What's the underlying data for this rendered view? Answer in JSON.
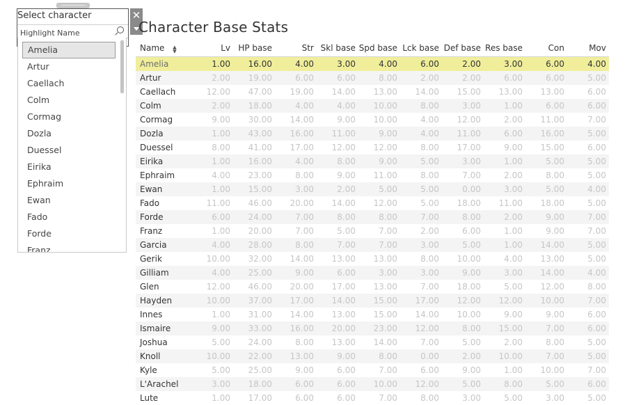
{
  "selector": {
    "title": "Select character",
    "search_placeholder": "Highlight Name",
    "close_glyph": "✕",
    "items": [
      "Amelia",
      "Artur",
      "Caellach",
      "Colm",
      "Cormag",
      "Dozla",
      "Duessel",
      "Eirika",
      "Ephraim",
      "Ewan",
      "Fado",
      "Forde",
      "Franz"
    ],
    "selected": "Amelia"
  },
  "table": {
    "title": "Character Base Stats",
    "columns": [
      "Name",
      "Lv",
      "HP base",
      "Str",
      "Skl base",
      "Spd base",
      "Lck base",
      "Def base",
      "Res base",
      "Con",
      "Mov"
    ],
    "highlight_row": "Amelia",
    "rows": [
      [
        "Amelia",
        "1.00",
        "16.00",
        "4.00",
        "3.00",
        "4.00",
        "6.00",
        "2.00",
        "3.00",
        "6.00",
        "4.00"
      ],
      [
        "Artur",
        "2.00",
        "19.00",
        "6.00",
        "6.00",
        "8.00",
        "2.00",
        "2.00",
        "6.00",
        "6.00",
        "5.00"
      ],
      [
        "Caellach",
        "12.00",
        "47.00",
        "19.00",
        "14.00",
        "13.00",
        "14.00",
        "15.00",
        "13.00",
        "13.00",
        "6.00"
      ],
      [
        "Colm",
        "2.00",
        "18.00",
        "4.00",
        "4.00",
        "10.00",
        "8.00",
        "3.00",
        "1.00",
        "6.00",
        "6.00"
      ],
      [
        "Cormag",
        "9.00",
        "30.00",
        "14.00",
        "9.00",
        "10.00",
        "4.00",
        "12.00",
        "2.00",
        "11.00",
        "7.00"
      ],
      [
        "Dozla",
        "1.00",
        "43.00",
        "16.00",
        "11.00",
        "9.00",
        "4.00",
        "11.00",
        "6.00",
        "16.00",
        "5.00"
      ],
      [
        "Duessel",
        "8.00",
        "41.00",
        "17.00",
        "12.00",
        "12.00",
        "8.00",
        "17.00",
        "9.00",
        "15.00",
        "6.00"
      ],
      [
        "Eirika",
        "1.00",
        "16.00",
        "4.00",
        "8.00",
        "9.00",
        "5.00",
        "3.00",
        "1.00",
        "5.00",
        "5.00"
      ],
      [
        "Ephraim",
        "4.00",
        "23.00",
        "8.00",
        "9.00",
        "11.00",
        "8.00",
        "7.00",
        "2.00",
        "8.00",
        "5.00"
      ],
      [
        "Ewan",
        "1.00",
        "15.00",
        "3.00",
        "2.00",
        "5.00",
        "5.00",
        "0.00",
        "3.00",
        "5.00",
        "4.00"
      ],
      [
        "Fado",
        "11.00",
        "46.00",
        "20.00",
        "14.00",
        "12.00",
        "5.00",
        "18.00",
        "11.00",
        "18.00",
        "5.00"
      ],
      [
        "Forde",
        "6.00",
        "24.00",
        "7.00",
        "8.00",
        "8.00",
        "7.00",
        "8.00",
        "2.00",
        "9.00",
        "7.00"
      ],
      [
        "Franz",
        "1.00",
        "20.00",
        "7.00",
        "5.00",
        "7.00",
        "2.00",
        "6.00",
        "1.00",
        "9.00",
        "7.00"
      ],
      [
        "Garcia",
        "4.00",
        "28.00",
        "8.00",
        "7.00",
        "7.00",
        "3.00",
        "5.00",
        "1.00",
        "14.00",
        "5.00"
      ],
      [
        "Gerik",
        "10.00",
        "32.00",
        "14.00",
        "13.00",
        "13.00",
        "8.00",
        "10.00",
        "4.00",
        "13.00",
        "5.00"
      ],
      [
        "Gilliam",
        "4.00",
        "25.00",
        "9.00",
        "6.00",
        "3.00",
        "3.00",
        "9.00",
        "3.00",
        "14.00",
        "4.00"
      ],
      [
        "Glen",
        "12.00",
        "46.00",
        "20.00",
        "17.00",
        "13.00",
        "7.00",
        "18.00",
        "5.00",
        "12.00",
        "8.00"
      ],
      [
        "Hayden",
        "10.00",
        "37.00",
        "17.00",
        "14.00",
        "15.00",
        "17.00",
        "12.00",
        "12.00",
        "10.00",
        "7.00"
      ],
      [
        "Innes",
        "1.00",
        "31.00",
        "14.00",
        "13.00",
        "15.00",
        "14.00",
        "10.00",
        "9.00",
        "9.00",
        "6.00"
      ],
      [
        "Ismaire",
        "9.00",
        "33.00",
        "16.00",
        "20.00",
        "23.00",
        "12.00",
        "8.00",
        "15.00",
        "7.00",
        "6.00"
      ],
      [
        "Joshua",
        "5.00",
        "24.00",
        "8.00",
        "13.00",
        "14.00",
        "7.00",
        "5.00",
        "2.00",
        "8.00",
        "5.00"
      ],
      [
        "Knoll",
        "10.00",
        "22.00",
        "13.00",
        "9.00",
        "8.00",
        "0.00",
        "2.00",
        "10.00",
        "7.00",
        "5.00"
      ],
      [
        "Kyle",
        "5.00",
        "25.00",
        "9.00",
        "6.00",
        "7.00",
        "6.00",
        "9.00",
        "1.00",
        "10.00",
        "7.00"
      ],
      [
        "L'Arachel",
        "3.00",
        "18.00",
        "6.00",
        "6.00",
        "10.00",
        "12.00",
        "5.00",
        "8.00",
        "5.00",
        "6.00"
      ],
      [
        "Lute",
        "1.00",
        "17.00",
        "6.00",
        "6.00",
        "7.00",
        "8.00",
        "3.00",
        "5.00",
        "3.00",
        "5.00"
      ]
    ]
  },
  "colors": {
    "highlight": "#f0ee9a",
    "muted_value": "#c6c6c6",
    "text": "#333333"
  }
}
